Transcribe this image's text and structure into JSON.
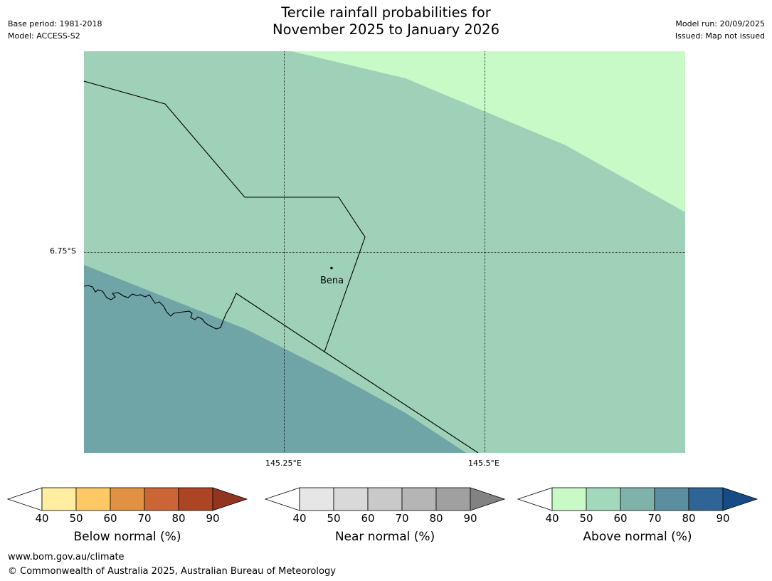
{
  "header": {
    "title_line1": "Tercile rainfall probabilities for",
    "title_line2": "November 2025 to January 2026",
    "base_period": "Base period: 1981-2018",
    "model": "Model: ACCESS-S2",
    "model_run": "Model run: 20/09/2025",
    "issued": "Issued: Map not issued"
  },
  "map": {
    "lat_label": "6.75°S",
    "lon_labels": [
      "145.25°E",
      "145.5°E"
    ],
    "place": "Bena",
    "colors": {
      "above_40_50": "#c8fac8",
      "above_50_60": "#9fd1b9",
      "above_60_70": "#6fa5a7",
      "land_boundary": "#000000",
      "graticule": "#000000"
    }
  },
  "colorbars": [
    {
      "label": "Below normal (%)",
      "ticks": [
        "40",
        "50",
        "60",
        "70",
        "80",
        "90"
      ],
      "colors": [
        "#ffeea1",
        "#fec965",
        "#e09142",
        "#cc6535",
        "#ad4525",
        "#923420"
      ]
    },
    {
      "label": "Near normal (%)",
      "ticks": [
        "40",
        "50",
        "60",
        "70",
        "80",
        "90"
      ],
      "colors": [
        "#e6e6e6",
        "#d9d9d9",
        "#c9c9c9",
        "#b5b5b5",
        "#a0a0a0",
        "#828282"
      ]
    },
    {
      "label": "Above normal (%)",
      "ticks": [
        "40",
        "50",
        "60",
        "70",
        "80",
        "90"
      ],
      "colors": [
        "#c8fac8",
        "#a2d8bb",
        "#7fb3aa",
        "#5b8fa0",
        "#2f6496",
        "#174b86"
      ]
    }
  ],
  "footer": {
    "url": "www.bom.gov.au/climate",
    "copyright": "© Commonwealth of Australia 2025, Australian Bureau of Meteorology"
  }
}
